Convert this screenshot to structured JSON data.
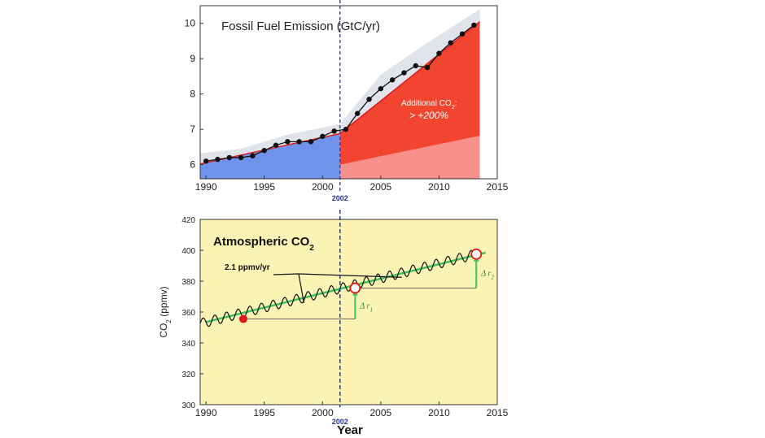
{
  "chart_data": [
    {
      "type": "area",
      "title": "Fossil Fuel Emission (GtC/yr)",
      "xlabel": "",
      "ylabel": "",
      "xlim": [
        1989.5,
        2015
      ],
      "ylim": [
        5.6,
        10.5
      ],
      "xticks": [
        1990,
        1995,
        2000,
        2005,
        2010,
        2015
      ],
      "yticks": [
        6,
        7,
        8,
        9,
        10
      ],
      "marker_year": 2002,
      "marker_label": "2002",
      "annotation": {
        "line1": "Additional CO",
        "sub": "2",
        "suffix": ":",
        "line2": "> +200%"
      },
      "colors": {
        "before": "#6f92ea",
        "after": "#f24530",
        "after_lower": "#f7908a",
        "band": "#e1e3ea",
        "trend": "#e01a1a",
        "marker": "#2233cc"
      },
      "series": [
        {
          "kind": "points",
          "x": [
            1990,
            1991,
            1992,
            1993,
            1994,
            1995,
            1996,
            1997,
            1998,
            1999,
            2000,
            2001,
            2002,
            2003,
            2004,
            2005,
            2006,
            2007,
            2008,
            2009,
            2010,
            2011,
            2012,
            2013
          ],
          "values": [
            6.1,
            6.15,
            6.2,
            6.2,
            6.25,
            6.4,
            6.55,
            6.65,
            6.65,
            6.65,
            6.8,
            6.95,
            7.0,
            7.45,
            7.85,
            8.15,
            8.4,
            8.6,
            8.8,
            8.75,
            9.15,
            9.45,
            9.7,
            9.95
          ]
        },
        {
          "kind": "trend_before",
          "x": [
            1989.5,
            2001.5
          ],
          "values": [
            6.02,
            6.88
          ]
        },
        {
          "kind": "trend_after",
          "x": [
            2001.5,
            2013.5
          ],
          "values": [
            6.88,
            10.05
          ]
        },
        {
          "kind": "lower_after",
          "x": [
            2001.5,
            2013.5
          ],
          "values": [
            6.0,
            6.82
          ]
        },
        {
          "kind": "band",
          "x": [
            1989.5,
            1993,
            1997,
            2001.5,
            2005,
            2009,
            2013.5
          ],
          "upper": [
            6.32,
            6.45,
            6.85,
            7.15,
            8.55,
            9.45,
            10.4
          ],
          "lower": [
            6.05,
            6.15,
            6.5,
            6.9,
            7.75,
            8.6,
            9.85
          ]
        }
      ]
    },
    {
      "type": "line",
      "title": "Atmospheric CO",
      "title_sub": "2",
      "xlabel": "Year",
      "ylabel": "CO",
      "ylabel_sub": "2",
      "ylabel_suffix": " (ppmv)",
      "xlim": [
        1989.5,
        2015
      ],
      "ylim": [
        300,
        420
      ],
      "xticks": [
        1990,
        1995,
        2000,
        2005,
        2010,
        2015
      ],
      "yticks": [
        300,
        320,
        340,
        360,
        380,
        400,
        420
      ],
      "marker_year": 2002,
      "marker_label": "2002",
      "annotation": "2.1 ppmv/yr",
      "delta_labels": [
        "Δ r",
        "Δ r"
      ],
      "delta_subs": [
        "1",
        "2"
      ],
      "colors": {
        "background": "#fbf3b4",
        "seasonal": "#111111",
        "trend": "#3ec45e",
        "red_point": "#e01818",
        "open_circle": "#e01818",
        "marker": "#2233cc",
        "ref_line": "#555555"
      },
      "series": [
        {
          "kind": "trend",
          "x": [
            1990,
            2014
          ],
          "values": [
            353.5,
            398.5
          ]
        },
        {
          "kind": "seasonal",
          "x": [
            1989.5,
            2013.5
          ],
          "start": 352.5,
          "slope": 1.9,
          "amplitude": 3.2
        },
        {
          "kind": "point",
          "x": [
            1993.2
          ],
          "values": [
            355.5
          ]
        },
        {
          "kind": "open_points",
          "x": [
            2002.8,
            2013.2
          ],
          "values": [
            375.5,
            397.5
          ]
        },
        {
          "kind": "reference",
          "x": [
            1993.2,
            2002.8
          ],
          "values": [
            355.5,
            375.5
          ]
        },
        {
          "kind": "reference",
          "x": [
            2002.8,
            2013.2
          ],
          "values": [
            375.5,
            397.5
          ]
        }
      ]
    }
  ]
}
